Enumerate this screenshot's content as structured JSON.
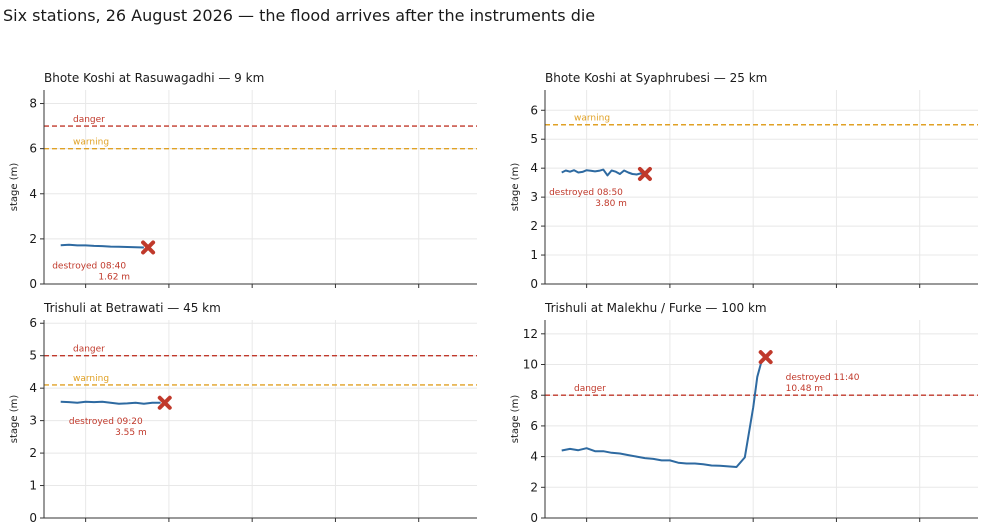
{
  "figure": {
    "suptitle": "Six stations, 26 August 2026 — the flood arrives after the instruments die"
  },
  "colors": {
    "series": "#2e6aa1",
    "danger": "#c0392b",
    "warning": "#e0a125",
    "marker": "#c0392b",
    "grid": "#e8e8e8",
    "axis": "#333333"
  },
  "chart_data": [
    {
      "type": "line",
      "title": "Bhote Koshi at Rasuwagadhi — 9 km",
      "ylabel": "stage (m)",
      "ylim": [
        0,
        8.6
      ],
      "yticks": [
        0,
        2,
        4,
        6,
        8
      ],
      "xlim": [
        -0.2,
        5.0
      ],
      "xticks": [
        0.3,
        1.3,
        2.3,
        3.3,
        4.3
      ],
      "grid": true,
      "thresholds": [
        {
          "name": "danger",
          "value": 7.0,
          "color": "#c0392b"
        },
        {
          "name": "warning",
          "value": 6.0,
          "color": "#e0a125"
        }
      ],
      "series": [
        {
          "x": [
            0,
            0.1,
            0.2,
            0.3,
            0.4,
            0.5,
            0.6,
            0.7,
            0.8,
            0.9,
            1.0
          ],
          "y": [
            1.72,
            1.74,
            1.71,
            1.71,
            1.69,
            1.68,
            1.66,
            1.65,
            1.64,
            1.63,
            1.62
          ]
        }
      ],
      "failure": {
        "x": 1.05,
        "y": 1.62,
        "label": "destroyed 08:40",
        "value_label": "1.62 m",
        "label_pos": "below-left"
      }
    },
    {
      "type": "line",
      "title": "Bhote Koshi at Syaphrubesi — 25 km",
      "ylabel": "stage (m)",
      "ylim": [
        0,
        6.7
      ],
      "yticks": [
        0,
        1,
        2,
        3,
        4,
        5,
        6
      ],
      "xlim": [
        -0.2,
        5.0
      ],
      "xticks": [
        0.3,
        1.3,
        2.3,
        3.3,
        4.3
      ],
      "grid": true,
      "thresholds": [
        {
          "name": "warning",
          "value": 5.5,
          "color": "#e0a125"
        }
      ],
      "series": [
        {
          "x": [
            0,
            0.05,
            0.1,
            0.15,
            0.2,
            0.25,
            0.3,
            0.35,
            0.4,
            0.45,
            0.5,
            0.55,
            0.6,
            0.65,
            0.7,
            0.75,
            0.8,
            0.85,
            0.9,
            0.95,
            1.0
          ],
          "y": [
            3.85,
            3.92,
            3.88,
            3.93,
            3.85,
            3.87,
            3.93,
            3.91,
            3.89,
            3.91,
            3.95,
            3.75,
            3.92,
            3.88,
            3.8,
            3.92,
            3.85,
            3.8,
            3.78,
            3.82,
            3.8
          ]
        }
      ],
      "failure": {
        "x": 1.0,
        "y": 3.8,
        "label": "destroyed 08:50",
        "value_label": "3.80 m",
        "label_pos": "below-left"
      }
    },
    {
      "type": "line",
      "title": "Trishuli at Betrawati — 45 km",
      "ylabel": "stage (m)",
      "ylim": [
        0,
        6.1
      ],
      "yticks": [
        0,
        1,
        2,
        3,
        4,
        5,
        6
      ],
      "xlim": [
        -0.2,
        5.0
      ],
      "xticks": [
        0.3,
        1.3,
        2.3,
        3.3,
        4.3
      ],
      "grid": true,
      "thresholds": [
        {
          "name": "danger",
          "value": 5.0,
          "color": "#c0392b"
        },
        {
          "name": "warning",
          "value": 4.1,
          "color": "#e0a125"
        }
      ],
      "series": [
        {
          "x": [
            0,
            0.1,
            0.2,
            0.3,
            0.4,
            0.5,
            0.6,
            0.7,
            0.8,
            0.9,
            1.0,
            1.1,
            1.2
          ],
          "y": [
            3.58,
            3.57,
            3.55,
            3.58,
            3.57,
            3.58,
            3.55,
            3.52,
            3.53,
            3.55,
            3.52,
            3.55,
            3.55
          ]
        }
      ],
      "failure": {
        "x": 1.25,
        "y": 3.55,
        "label": "destroyed 09:20",
        "value_label": "3.55 m",
        "label_pos": "below-left"
      }
    },
    {
      "type": "line",
      "title": "Trishuli at Malekhu / Furke — 100 km",
      "ylabel": "stage (m)",
      "ylim": [
        0,
        12.9
      ],
      "yticks": [
        0,
        2,
        4,
        6,
        8,
        10,
        12
      ],
      "xlim": [
        -0.2,
        5.0
      ],
      "xticks": [
        0.3,
        1.3,
        2.3,
        3.3,
        4.3
      ],
      "grid": true,
      "thresholds": [
        {
          "name": "danger",
          "value": 8.0,
          "color": "#c0392b"
        }
      ],
      "series": [
        {
          "x": [
            0,
            0.1,
            0.2,
            0.3,
            0.4,
            0.5,
            0.6,
            0.7,
            0.8,
            0.9,
            1.0,
            1.1,
            1.2,
            1.3,
            1.4,
            1.5,
            1.6,
            1.7,
            1.8,
            1.9,
            2.0,
            2.1,
            2.2,
            2.3,
            2.35,
            2.4,
            2.45
          ],
          "y": [
            4.4,
            4.5,
            4.42,
            4.55,
            4.35,
            4.35,
            4.25,
            4.2,
            4.1,
            4.0,
            3.9,
            3.85,
            3.75,
            3.75,
            3.6,
            3.55,
            3.55,
            3.5,
            3.42,
            3.4,
            3.36,
            3.32,
            3.95,
            7.2,
            9.2,
            10.2,
            10.48
          ]
        }
      ],
      "failure": {
        "x": 2.45,
        "y": 10.48,
        "label": "destroyed 11:40",
        "value_label": "10.48 m",
        "label_pos": "right"
      }
    }
  ]
}
